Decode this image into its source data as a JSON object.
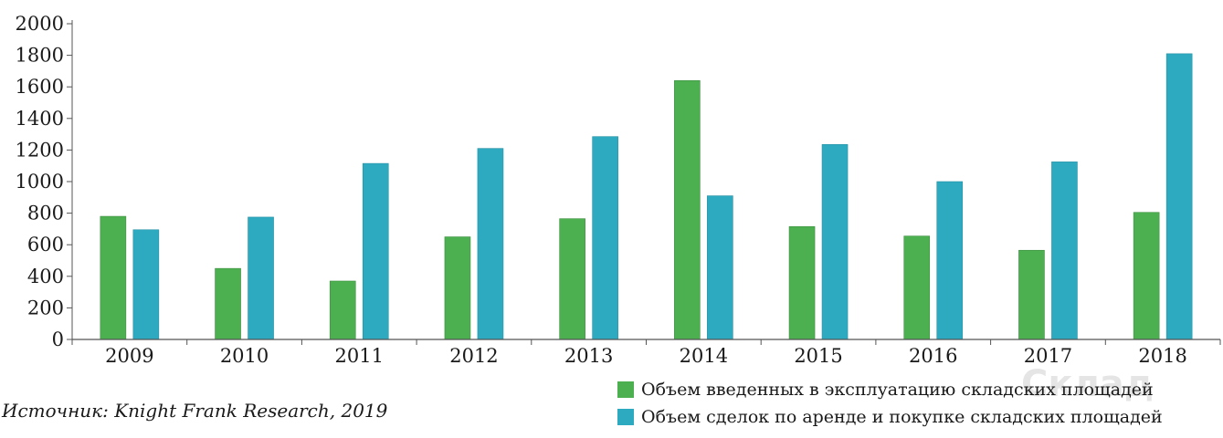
{
  "chart_data": {
    "type": "bar",
    "title": "",
    "xlabel": "",
    "ylabel": "",
    "ylim": [
      0,
      2000
    ],
    "yticks": [
      0,
      200,
      400,
      600,
      800,
      1000,
      1200,
      1400,
      1600,
      1800,
      2000
    ],
    "categories": [
      "2009",
      "2010",
      "2011",
      "2012",
      "2013",
      "2014",
      "2015",
      "2016",
      "2017",
      "2018"
    ],
    "series": [
      {
        "name": "Объем введенных в эксплуатацию складских площадей",
        "color": "#4caf50",
        "values": [
          780,
          450,
          370,
          650,
          765,
          1640,
          715,
          655,
          565,
          805
        ]
      },
      {
        "name": "Объем сделок по аренде и покупке складских площадей",
        "color": "#2eaac0",
        "values": [
          695,
          775,
          1115,
          1210,
          1285,
          910,
          1235,
          1000,
          1125,
          1810
        ]
      }
    ],
    "legend_position": "bottom-right",
    "grid": false
  },
  "source": {
    "prefix": "Источник",
    "text": ": Knight Frank Research, 2019"
  },
  "watermark": "Склад"
}
